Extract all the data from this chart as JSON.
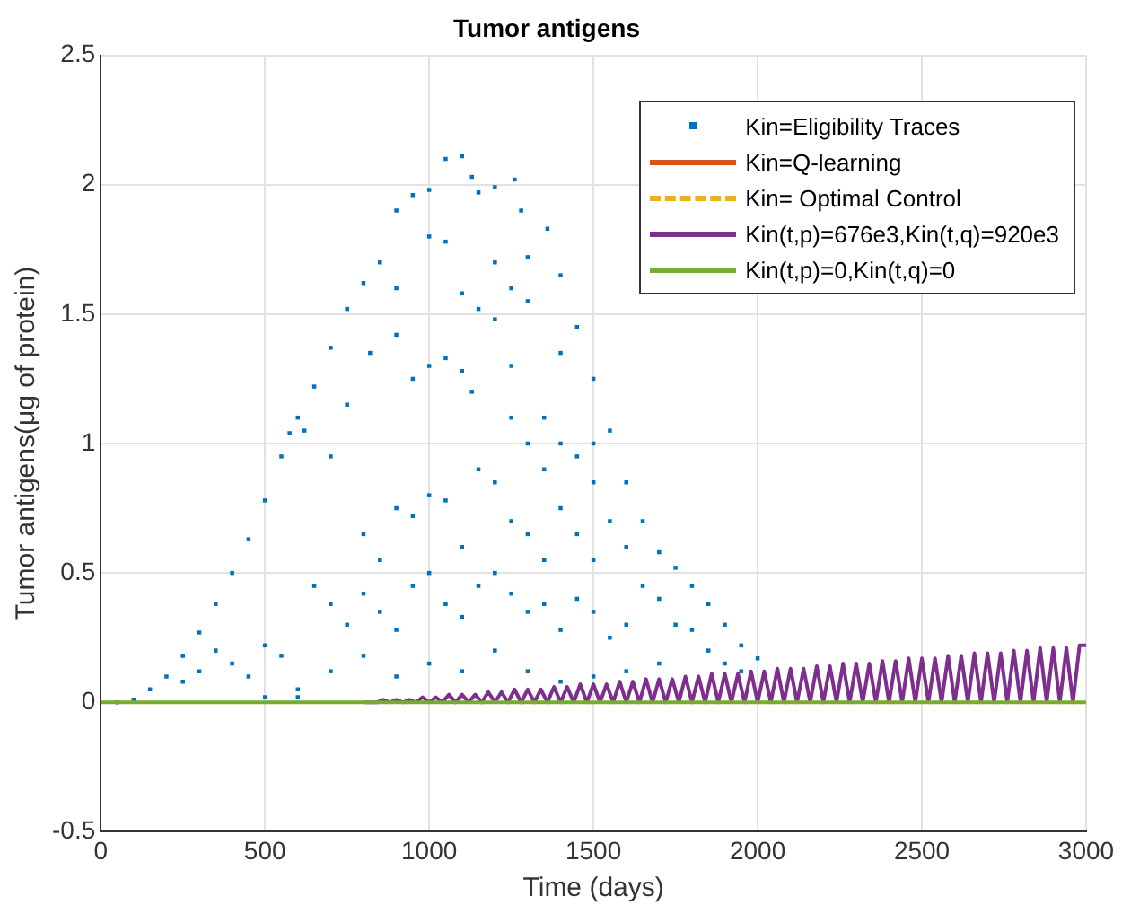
{
  "chart_data": {
    "type": "line",
    "title": "Tumor antigens",
    "xlabel": "Time (days)",
    "ylabel": "Tumor antigens(μg of protein)",
    "xlim": [
      0,
      3000
    ],
    "xticks": [
      0,
      500,
      1000,
      1500,
      2000,
      2500,
      3000
    ],
    "ylim": [
      -0.5,
      2.5
    ],
    "yticks": [
      -0.5,
      0,
      0.5,
      1,
      1.5,
      2,
      2.5
    ],
    "grid": true,
    "legend": "top right",
    "series": [
      {
        "name": "Kin=Eligibility Traces",
        "type": "scatter",
        "marker": "square",
        "color": "#0072bd",
        "x": [
          50,
          100,
          150,
          200,
          250,
          300,
          350,
          400,
          450,
          500,
          550,
          575,
          600,
          650,
          700,
          750,
          800,
          850,
          900,
          950,
          1000,
          1050,
          1100,
          1130,
          1200,
          1260,
          1280,
          1360,
          1400,
          1450,
          1500,
          1550,
          1600,
          1650,
          1700,
          1750,
          1800,
          1850,
          1900,
          1950,
          2000,
          2060,
          620,
          700,
          750,
          800,
          850,
          900,
          950,
          1000,
          1050,
          1100,
          1150,
          1200,
          1250,
          1300,
          1350,
          1400,
          1450,
          1500,
          650,
          700,
          750,
          800,
          850,
          900,
          950,
          1000,
          1050,
          1100,
          1150,
          1200,
          1250,
          1300,
          1350,
          1400,
          1450,
          1500,
          1550,
          1600,
          1650,
          1700,
          1750,
          1800,
          1850,
          1900,
          1950,
          350,
          400,
          450,
          500,
          550,
          600,
          700,
          800,
          900,
          1000,
          1100,
          1200,
          1300,
          1400,
          1500,
          1600,
          1700,
          250,
          300,
          500,
          600,
          820,
          900,
          950,
          1000,
          1050,
          1100,
          1150,
          1200,
          1250,
          1300,
          1350,
          1400,
          1450,
          1500,
          1000,
          1050,
          1200,
          1300,
          1400,
          900,
          1100,
          1250,
          1150,
          1130,
          1250,
          1300,
          1350,
          1500,
          1600,
          1550
        ],
        "values": [
          0,
          0.01,
          0.05,
          0.1,
          0.18,
          0.27,
          0.38,
          0.5,
          0.63,
          0.78,
          0.95,
          1.04,
          1.1,
          1.22,
          1.37,
          1.52,
          1.62,
          1.7,
          1.9,
          1.96,
          1.98,
          2.1,
          2.11,
          2.03,
          1.99,
          2.02,
          1.9,
          1.83,
          1.65,
          1.45,
          1.25,
          1.05,
          0.85,
          0.7,
          0.58,
          0.52,
          0.45,
          0.38,
          0.3,
          0.22,
          0.17,
          0.12,
          1.05,
          0.95,
          1.15,
          0.65,
          0.55,
          0.75,
          0.72,
          0.8,
          0.78,
          0.6,
          0.9,
          0.85,
          0.7,
          0.65,
          0.55,
          0.75,
          0.65,
          0.55,
          0.45,
          0.38,
          0.3,
          0.42,
          0.35,
          0.28,
          0.45,
          0.5,
          0.38,
          0.33,
          0.45,
          0.5,
          0.42,
          0.35,
          0.38,
          0.28,
          0.4,
          0.35,
          0.25,
          0.3,
          0.45,
          0.4,
          0.3,
          0.28,
          0.2,
          0.15,
          0.12,
          0.2,
          0.15,
          0.1,
          0.22,
          0.18,
          0.05,
          0.12,
          0.18,
          0.1,
          0.15,
          0.12,
          0.2,
          0.12,
          0.08,
          0.1,
          0.12,
          0.15,
          0.08,
          0.12,
          0.02,
          0.02,
          1.35,
          1.42,
          1.25,
          1.3,
          1.33,
          1.28,
          1.52,
          1.48,
          1.3,
          1.72,
          1.1,
          1.0,
          0.95,
          0.85,
          1.8,
          1.78,
          1.7,
          1.55,
          1.35,
          1.6,
          1.58,
          1.6,
          1.97,
          1.2,
          1.1,
          1.0,
          0.9,
          1.0,
          0.6,
          0.7
        ]
      },
      {
        "name": "Kin=Q-learning",
        "line_style": "solid",
        "color": "#d95319"
      },
      {
        "name": "Kin= Optimal Control",
        "line_style": "dashed",
        "color": "#edb120"
      },
      {
        "name": "Kin(t,p)=676e3,Kin(t,q)=920e3",
        "line_style": "solid",
        "color": "#7e2f8e",
        "x": [
          800,
          820,
          840,
          860,
          880,
          900,
          920,
          940,
          960,
          980,
          1000,
          1020,
          1040,
          1060,
          1080,
          1100,
          1120,
          1140,
          1160,
          1180,
          1200,
          1220,
          1240,
          1260,
          1280,
          1300,
          1320,
          1340,
          1360,
          1380,
          1400,
          1420,
          1440,
          1460,
          1480,
          1500,
          1520,
          1540,
          1560,
          1580,
          1600,
          1620,
          1640,
          1660,
          1680,
          1700,
          1720,
          1740,
          1760,
          1780,
          1800,
          1820,
          1840,
          1860,
          1880,
          1900,
          1920,
          1940,
          1960,
          1980,
          2000,
          2020,
          2040,
          2060,
          2080,
          2100,
          2120,
          2140,
          2160,
          2180,
          2200,
          2220,
          2240,
          2260,
          2280,
          2300,
          2320,
          2340,
          2360,
          2380,
          2400,
          2420,
          2440,
          2460,
          2480,
          2500,
          2520,
          2540,
          2560,
          2580,
          2600,
          2620,
          2640,
          2660,
          2680,
          2700,
          2720,
          2740,
          2760,
          2780,
          2800,
          2820,
          2840,
          2860,
          2880,
          2900,
          2920,
          2940,
          2960,
          2980,
          3000
        ],
        "values": [
          0,
          0,
          0,
          0.01,
          0,
          0.01,
          0,
          0.01,
          0,
          0.02,
          0,
          0.02,
          0,
          0.03,
          0,
          0.03,
          0,
          0.03,
          0,
          0.04,
          0,
          0.04,
          0,
          0.05,
          0,
          0.05,
          0,
          0.05,
          0,
          0.06,
          0,
          0.06,
          0,
          0.07,
          0,
          0.07,
          0,
          0.07,
          0,
          0.08,
          0,
          0.08,
          0,
          0.09,
          0,
          0.09,
          0,
          0.09,
          0,
          0.1,
          0,
          0.1,
          0,
          0.11,
          0,
          0.11,
          0,
          0.11,
          0,
          0.12,
          0,
          0.12,
          0,
          0.13,
          0,
          0.13,
          0,
          0.13,
          0,
          0.14,
          0,
          0.14,
          0,
          0.15,
          0,
          0.15,
          0,
          0.15,
          0,
          0.16,
          0,
          0.16,
          0,
          0.17,
          0,
          0.17,
          0,
          0.17,
          0,
          0.18,
          0,
          0.18,
          0,
          0.19,
          0,
          0.19,
          0,
          0.19,
          0,
          0.2,
          0,
          0.2,
          0,
          0.21,
          0,
          0.21,
          0,
          0.21,
          0,
          0.22,
          0.22
        ]
      },
      {
        "name": "Kin(t,p)=0,Kin(t,q)=0",
        "line_style": "solid",
        "color": "#77ac30",
        "x": [
          0,
          3000
        ],
        "values": [
          0,
          0
        ]
      }
    ]
  }
}
